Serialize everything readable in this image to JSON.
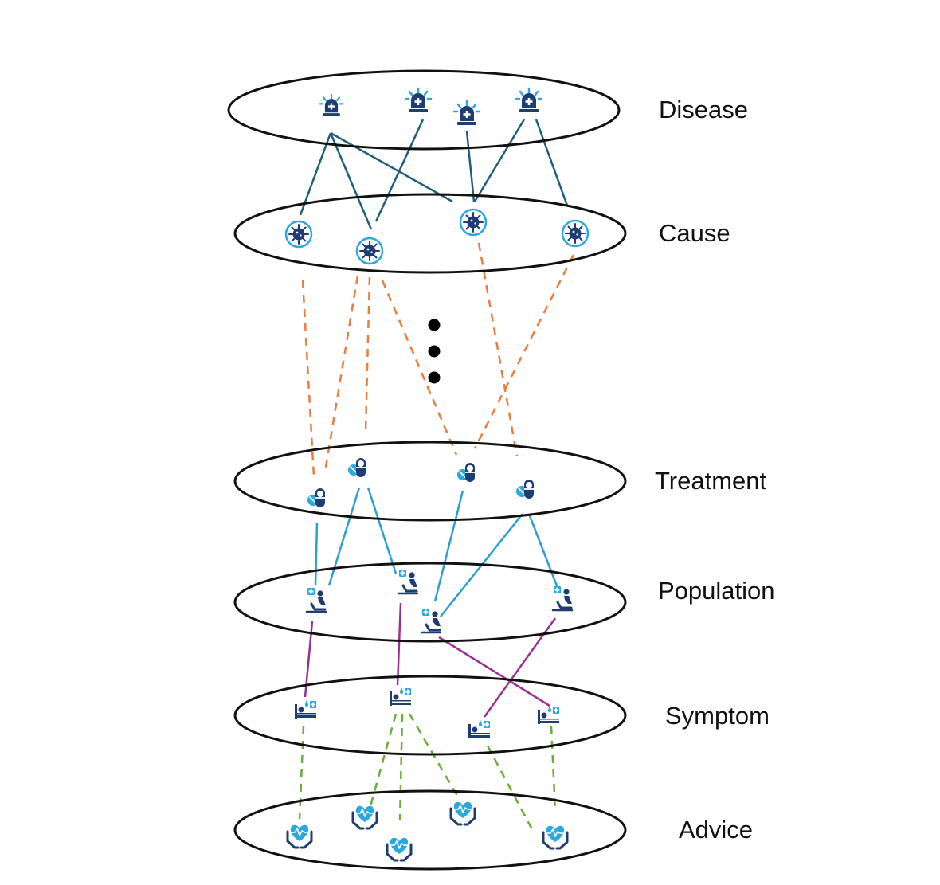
{
  "layers": {
    "disease": {
      "label": "Disease"
    },
    "cause": {
      "label": "Cause"
    },
    "treatment": {
      "label": "Treatment"
    },
    "population": {
      "label": "Population"
    },
    "symptom": {
      "label": "Symptom"
    },
    "advice": {
      "label": "Advice"
    }
  },
  "icons": {
    "disease": "siren-icon",
    "cause": "virus-icon",
    "treatment": "pill-icon",
    "population": "patient-chair-icon",
    "symptom": "hospital-bed-icon",
    "advice": "heart-hands-icon"
  },
  "colors": {
    "disease_cause_edge": "#1f5f7a",
    "cause_treatment_edge": "#e87d3e",
    "treatment_population_edge": "#2a9fd0",
    "population_symptom_edge": "#9b2f98",
    "symptom_advice_edge": "#6aad3a",
    "icon_dark": "#1e3d73",
    "icon_light": "#2aa8df",
    "ellipse_stroke": "#111111"
  }
}
